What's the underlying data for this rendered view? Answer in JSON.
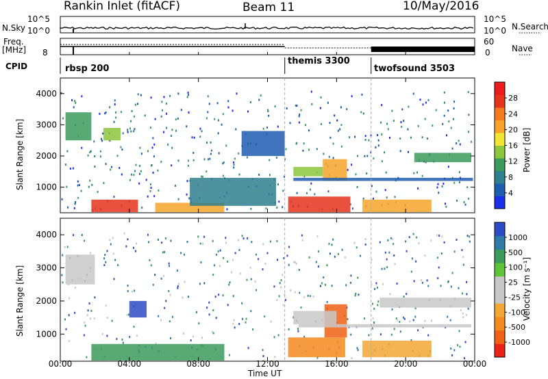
{
  "header": {
    "station": "Rankin Inlet (fitACF)",
    "beam": "Beam 11",
    "date": "10/May/2016"
  },
  "strips": {
    "nsky_label": "N.Sky",
    "nsky_ticks": [
      "10^5",
      "10^0"
    ],
    "nsearch_label": "N.Search",
    "freq_label_1": "Freq.",
    "freq_label_2": "[MHz]",
    "freq_ticks": [
      "8"
    ],
    "nave_label": "Nave",
    "nave_ticks": [
      "60",
      "0"
    ],
    "cpid_label": "CPID",
    "cpid_segments": [
      {
        "name": "rbsp 200",
        "start_hour": 0
      },
      {
        "name": "themis 3300",
        "start_hour": 13
      },
      {
        "name": "twofsound 3503",
        "start_hour": 18
      }
    ]
  },
  "colors": {
    "power_scale": [
      "#1d2ee8",
      "#1e5cb0",
      "#2f7f8e",
      "#3c9a5c",
      "#8cc63c",
      "#f3e534",
      "#f7a52a",
      "#f47a20",
      "#e5331c",
      "#ec1c1c"
    ],
    "velocity_scale": [
      "#2e4bc6",
      "#2f7aa6",
      "#3c9a5c",
      "#5fc43a",
      "#c8c8c8",
      "#c8c8c8",
      "#f3a734",
      "#f58a1f",
      "#f06015",
      "#ea2316"
    ]
  },
  "chart_data": [
    {
      "type": "heatmap",
      "name": "power",
      "ylabel": "Slant Range [km]",
      "yticks": [
        "1000",
        "2000",
        "3000",
        "4000"
      ],
      "ylim": [
        180,
        4500
      ],
      "xlim": [
        0,
        24
      ],
      "xticks": [
        "00:00",
        "04:00",
        "08:00",
        "12:00",
        "16:00",
        "20:00",
        "00:00"
      ],
      "colorbar_label": "Power [dB]",
      "colorbar_ticks": [
        "4",
        "8",
        "12",
        "16",
        "20",
        "24",
        "28"
      ],
      "regions": [
        {
          "t": [
            1.8,
            4.5
          ],
          "r": [
            200,
            600
          ],
          "level": 8
        },
        {
          "t": [
            5.5,
            9.5
          ],
          "r": [
            200,
            500
          ],
          "level": 6
        },
        {
          "t": [
            13.2,
            16.8
          ],
          "r": [
            200,
            700
          ],
          "level": 8
        },
        {
          "t": [
            15.2,
            16.6
          ],
          "r": [
            1200,
            1900
          ],
          "level": 6
        },
        {
          "t": [
            13.5,
            15.2
          ],
          "r": [
            1350,
            1650
          ],
          "level": 4
        },
        {
          "t": [
            17.5,
            21.5
          ],
          "r": [
            200,
            600
          ],
          "level": 6
        },
        {
          "t": [
            20.5,
            23.8
          ],
          "r": [
            1800,
            2100
          ],
          "level": 3
        },
        {
          "t": [
            0.3,
            1.8
          ],
          "r": [
            2500,
            3400
          ],
          "level": 3
        },
        {
          "t": [
            2.5,
            3.5
          ],
          "r": [
            2500,
            2900
          ],
          "level": 4
        },
        {
          "t": [
            7.5,
            12.5
          ],
          "r": [
            400,
            1300
          ],
          "level": 2
        },
        {
          "t": [
            10.5,
            13.0
          ],
          "r": [
            2000,
            2800
          ],
          "level": 1
        },
        {
          "t": [
            13.5,
            23.9
          ],
          "r": [
            1200,
            1300
          ],
          "level": 1
        }
      ]
    },
    {
      "type": "heatmap",
      "name": "velocity",
      "ylabel": "Slant Range [km]",
      "yticks": [
        "1000",
        "2000",
        "3000",
        "4000"
      ],
      "ylim": [
        180,
        4500
      ],
      "xlim": [
        0,
        24
      ],
      "xticks": [
        "00:00",
        "04:00",
        "08:00",
        "12:00",
        "16:00",
        "20:00",
        "00:00"
      ],
      "xlabel": "Time UT",
      "colorbar_label": "Velocity [m s⁻¹]",
      "colorbar_ticks": [
        "1000",
        "500",
        "100",
        "25",
        "-25",
        "-100",
        "-500",
        "-1000"
      ],
      "regions": [
        {
          "t": [
            1.8,
            9.5
          ],
          "r": [
            200,
            700
          ],
          "level": 2
        },
        {
          "t": [
            13.2,
            16.5
          ],
          "r": [
            300,
            900
          ],
          "level": 7
        },
        {
          "t": [
            15.3,
            16.6
          ],
          "r": [
            900,
            1900
          ],
          "level": 8
        },
        {
          "t": [
            13.5,
            16.0
          ],
          "r": [
            1300,
            1700
          ],
          "level": 5
        },
        {
          "t": [
            13.8,
            23.8
          ],
          "r": [
            1200,
            1300
          ],
          "level": 5
        },
        {
          "t": [
            17.5,
            21.5
          ],
          "r": [
            300,
            800
          ],
          "level": 6
        },
        {
          "t": [
            18.5,
            23.8
          ],
          "r": [
            1800,
            2100
          ],
          "level": 5
        },
        {
          "t": [
            0.3,
            2.0
          ],
          "r": [
            2500,
            3400
          ],
          "level": 5
        },
        {
          "t": [
            4.0,
            5.0
          ],
          "r": [
            1500,
            2000
          ],
          "level": 0
        }
      ]
    }
  ]
}
